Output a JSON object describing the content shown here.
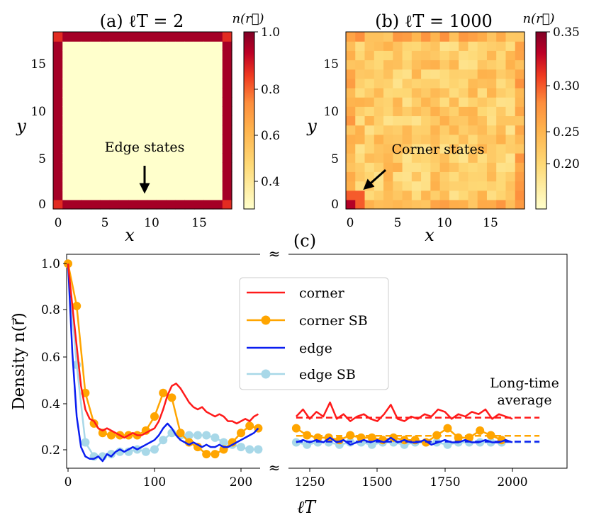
{
  "colors": {
    "corner": "#ff1a1a",
    "corner_sb": "#ffa500",
    "edge": "#0a1ef0",
    "edge_sb": "#a8d8e8",
    "heat_low": "#ffffcc",
    "heat_mid": "#feb24c",
    "heat_high": "#800026"
  },
  "chart_data": [
    {
      "type": "heatmap",
      "panel": "a",
      "title": "(a) ℓT = 2",
      "xlabel": "x",
      "ylabel": "y",
      "grid_size": [
        19,
        19
      ],
      "x_ticks": [
        "0",
        "5",
        "10",
        "15"
      ],
      "y_ticks": [
        "0",
        "5",
        "10",
        "15"
      ],
      "edge_value": 0.95,
      "corner_value": 0.85,
      "interior_value": 0.3,
      "colorbar": {
        "label": "n(r⃗)",
        "range": [
          0.3,
          1.0
        ],
        "ticks": [
          "0.4",
          "0.6",
          "0.8",
          "1.0"
        ]
      },
      "annotation": "Edge states"
    },
    {
      "type": "heatmap",
      "panel": "b",
      "title": "(b) ℓT = 1000",
      "xlabel": "x",
      "ylabel": "y",
      "grid_size": [
        19,
        19
      ],
      "x_ticks": [
        "0",
        "5",
        "10",
        "15"
      ],
      "y_ticks": [
        "0",
        "5",
        "10",
        "15"
      ],
      "corner_value": 0.33,
      "edge_value_range": [
        0.22,
        0.27
      ],
      "interior_value_range": [
        0.19,
        0.245
      ],
      "colorbar": {
        "label": "n(r⃗)",
        "range": [
          0.155,
          0.35
        ],
        "ticks": [
          "0.20",
          "0.25",
          "0.30",
          "0.35"
        ]
      },
      "annotation": "Corner states"
    },
    {
      "type": "line",
      "panel": "c",
      "title": "(c)",
      "xlabel": "ℓT",
      "ylabel": "Density n(r⃗)",
      "ylim": [
        0.13,
        1.04
      ],
      "y_ticks": [
        "0.2",
        "0.4",
        "0.6",
        "0.8",
        "1.0"
      ],
      "x_ticks_left": [
        "0",
        "100",
        "200"
      ],
      "x_ticks_right": [
        "1250",
        "1500",
        "1750",
        "2000"
      ],
      "xlim_left": [
        0,
        220
      ],
      "xlim_right": [
        1190,
        2200
      ],
      "annotation": "Long-time average",
      "series": [
        {
          "name": "corner",
          "style": "line",
          "x": [
            0,
            5,
            10,
            15,
            20,
            25,
            30,
            35,
            40,
            45,
            50,
            55,
            60,
            65,
            70,
            75,
            80,
            85,
            90,
            95,
            100,
            105,
            110,
            115,
            120,
            125,
            130,
            135,
            140,
            145,
            150,
            155,
            160,
            165,
            170,
            175,
            180,
            185,
            190,
            195,
            200,
            205,
            210,
            215,
            220
          ],
          "y": [
            1.0,
            0.82,
            0.65,
            0.48,
            0.38,
            0.34,
            0.33,
            0.3,
            0.29,
            0.3,
            0.29,
            0.28,
            0.27,
            0.26,
            0.27,
            0.28,
            0.27,
            0.27,
            0.28,
            0.29,
            0.3,
            0.33,
            0.38,
            0.44,
            0.48,
            0.49,
            0.47,
            0.44,
            0.41,
            0.39,
            0.38,
            0.39,
            0.37,
            0.36,
            0.35,
            0.36,
            0.35,
            0.33,
            0.33,
            0.32,
            0.33,
            0.34,
            0.33,
            0.35,
            0.36
          ],
          "long_time_x": [
            1200,
            1225,
            1250,
            1275,
            1300,
            1325,
            1350,
            1375,
            1400,
            1425,
            1450,
            1475,
            1500,
            1525,
            1550,
            1575,
            1600,
            1625,
            1650,
            1675,
            1700,
            1725,
            1750,
            1775,
            1800,
            1825,
            1850,
            1875,
            1900,
            1925,
            1950,
            1975,
            2000
          ],
          "long_time_y": [
            0.35,
            0.38,
            0.34,
            0.37,
            0.35,
            0.41,
            0.34,
            0.36,
            0.33,
            0.35,
            0.36,
            0.34,
            0.33,
            0.36,
            0.4,
            0.34,
            0.33,
            0.35,
            0.34,
            0.36,
            0.35,
            0.38,
            0.37,
            0.34,
            0.36,
            0.35,
            0.37,
            0.36,
            0.38,
            0.34,
            0.36,
            0.35,
            0.34
          ],
          "average": 0.345
        },
        {
          "name": "corner SB",
          "style": "line-marker",
          "x": [
            0,
            10,
            20,
            30,
            40,
            50,
            60,
            70,
            80,
            90,
            100,
            110,
            120,
            130,
            140,
            150,
            160,
            170,
            180,
            190,
            200,
            210,
            220
          ],
          "y": [
            1.0,
            0.82,
            0.45,
            0.32,
            0.28,
            0.27,
            0.27,
            0.27,
            0.27,
            0.29,
            0.35,
            0.45,
            0.43,
            0.28,
            0.24,
            0.22,
            0.19,
            0.19,
            0.21,
            0.24,
            0.28,
            0.31,
            0.3
          ],
          "long_time_x": [
            1200,
            1240,
            1280,
            1320,
            1360,
            1400,
            1440,
            1480,
            1520,
            1560,
            1600,
            1640,
            1680,
            1720,
            1760,
            1800,
            1840,
            1880,
            1920,
            1960
          ],
          "long_time_y": [
            0.3,
            0.27,
            0.26,
            0.26,
            0.25,
            0.27,
            0.26,
            0.26,
            0.25,
            0.26,
            0.25,
            0.25,
            0.24,
            0.27,
            0.3,
            0.26,
            0.26,
            0.29,
            0.27,
            0.25
          ],
          "average": 0.268
        },
        {
          "name": "edge",
          "style": "line",
          "x": [
            0,
            5,
            10,
            15,
            20,
            25,
            30,
            35,
            40,
            45,
            50,
            55,
            60,
            65,
            70,
            75,
            80,
            85,
            90,
            95,
            100,
            105,
            110,
            115,
            120,
            125,
            130,
            135,
            140,
            145,
            150,
            155,
            160,
            165,
            170,
            175,
            180,
            185,
            190,
            195,
            200,
            205,
            210,
            215,
            220
          ],
          "y": [
            1.0,
            0.62,
            0.35,
            0.22,
            0.18,
            0.17,
            0.17,
            0.18,
            0.16,
            0.19,
            0.18,
            0.2,
            0.21,
            0.2,
            0.21,
            0.22,
            0.21,
            0.22,
            0.23,
            0.24,
            0.25,
            0.27,
            0.3,
            0.32,
            0.3,
            0.27,
            0.25,
            0.24,
            0.23,
            0.24,
            0.23,
            0.22,
            0.23,
            0.22,
            0.22,
            0.23,
            0.22,
            0.22,
            0.23,
            0.24,
            0.25,
            0.26,
            0.27,
            0.28,
            0.3
          ],
          "long_time_x": [
            1200,
            1225,
            1250,
            1275,
            1300,
            1325,
            1350,
            1375,
            1400,
            1425,
            1450,
            1475,
            1500,
            1525,
            1550,
            1575,
            1600,
            1625,
            1650,
            1675,
            1700,
            1725,
            1750,
            1775,
            1800,
            1825,
            1850,
            1875,
            1900,
            1925,
            1950,
            1975,
            2000
          ],
          "long_time_y": [
            0.24,
            0.25,
            0.24,
            0.25,
            0.24,
            0.26,
            0.24,
            0.25,
            0.23,
            0.24,
            0.25,
            0.24,
            0.25,
            0.24,
            0.26,
            0.24,
            0.25,
            0.24,
            0.24,
            0.25,
            0.23,
            0.24,
            0.25,
            0.24,
            0.24,
            0.25,
            0.24,
            0.24,
            0.25,
            0.24,
            0.24,
            0.25,
            0.24
          ],
          "average": 0.243
        },
        {
          "name": "edge SB",
          "style": "line-marker",
          "x": [
            0,
            10,
            20,
            30,
            40,
            50,
            60,
            70,
            80,
            90,
            100,
            110,
            120,
            130,
            140,
            150,
            160,
            170,
            180,
            190,
            200,
            210,
            220
          ],
          "y": [
            1.0,
            0.57,
            0.24,
            0.18,
            0.18,
            0.19,
            0.2,
            0.2,
            0.21,
            0.2,
            0.21,
            0.25,
            0.28,
            0.27,
            0.27,
            0.27,
            0.27,
            0.26,
            0.24,
            0.23,
            0.22,
            0.21,
            0.21
          ],
          "long_time_x": [
            1200,
            1240,
            1280,
            1320,
            1360,
            1400,
            1440,
            1480,
            1520,
            1560,
            1600,
            1640,
            1680,
            1720,
            1760,
            1800,
            1840,
            1880,
            1920,
            1960
          ],
          "long_time_y": [
            0.24,
            0.23,
            0.24,
            0.24,
            0.23,
            0.24,
            0.24,
            0.23,
            0.24,
            0.24,
            0.23,
            0.24,
            0.24,
            0.24,
            0.23,
            0.24,
            0.24,
            0.24,
            0.24,
            0.24
          ],
          "average": 0.24
        }
      ]
    }
  ]
}
